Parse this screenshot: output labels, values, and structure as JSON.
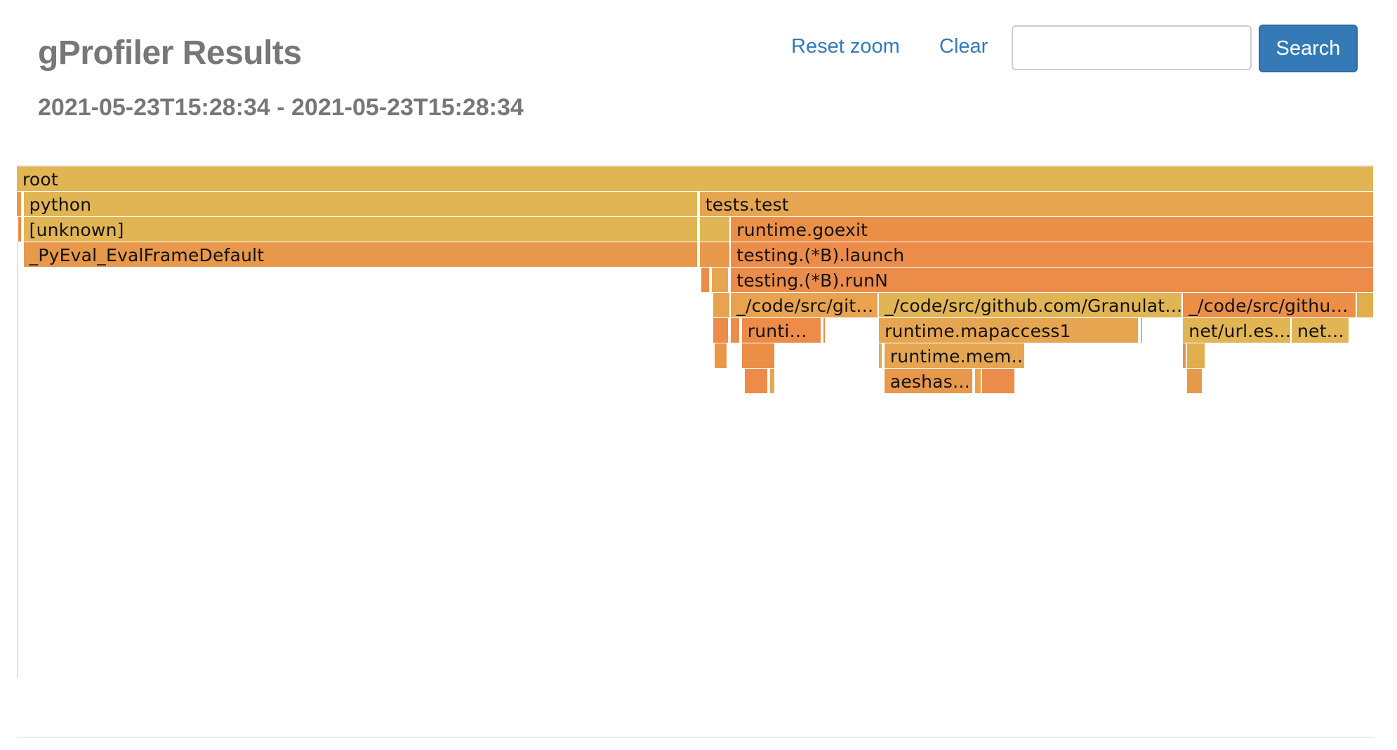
{
  "header": {
    "title": "gProfiler Results",
    "subtitle": "2021-05-23T15:28:34 - 2021-05-23T15:28:34",
    "reset_zoom_label": "Reset zoom",
    "clear_label": "Clear",
    "search_value": "",
    "search_label": "Search"
  },
  "colors": {
    "link": "#337ab7",
    "button": "#337ab7",
    "title": "#777777",
    "frame_yellow": "#e1b454",
    "frame_orange": "#ec8c4a"
  },
  "flamegraph": {
    "frames": [
      {
        "label": "root",
        "depth": 0,
        "start": 0,
        "width": 1
      },
      {
        "label": "",
        "depth": 1,
        "start": 0,
        "width": 0.004
      },
      {
        "label": "python",
        "depth": 1,
        "start": 0.005,
        "width": 0.497
      },
      {
        "label": "tests.test",
        "depth": 1,
        "start": 0.503,
        "width": 0.497
      },
      {
        "label": "",
        "depth": 2,
        "start": 0.001,
        "width": 0.003
      },
      {
        "label": "[unknown]",
        "depth": 2,
        "start": 0.005,
        "width": 0.497
      },
      {
        "label": "",
        "depth": 2,
        "start": 0.503,
        "width": 0.023
      },
      {
        "label": "runtime.goexit",
        "depth": 2,
        "start": 0.526,
        "width": 0.474
      },
      {
        "label": "_PyEval_EvalFrameDefault",
        "depth": 3,
        "start": 0.005,
        "width": 0.497
      },
      {
        "label": "",
        "depth": 3,
        "start": 0.503,
        "width": 0.023
      },
      {
        "label": "testing.(*B).launch",
        "depth": 3,
        "start": 0.526,
        "width": 0.474
      },
      {
        "label": "",
        "depth": 4,
        "start": 0.504,
        "width": 0.007
      },
      {
        "label": "",
        "depth": 4,
        "start": 0.512,
        "width": 0.013
      },
      {
        "label": "testing.(*B).runN",
        "depth": 4,
        "start": 0.526,
        "width": 0.474
      },
      {
        "label": "",
        "depth": 5,
        "start": 0.513,
        "width": 0.013
      },
      {
        "label": "_/code/src/git…",
        "depth": 5,
        "start": 0.526,
        "width": 0.109
      },
      {
        "label": "_/code/src/github.com/Granulat…",
        "depth": 5,
        "start": 0.635,
        "width": 0.224
      },
      {
        "label": "_/code/src/githu…",
        "depth": 5,
        "start": 0.859,
        "width": 0.128
      },
      {
        "label": "",
        "depth": 5,
        "start": 0.987,
        "width": 0.013
      },
      {
        "label": "",
        "depth": 6,
        "start": 0.513,
        "width": 0.012
      },
      {
        "label": "",
        "depth": 6,
        "start": 0.526,
        "width": 0.007
      },
      {
        "label": "runti…",
        "depth": 6,
        "start": 0.534,
        "width": 0.059
      },
      {
        "label": "",
        "depth": 6,
        "start": 0.594,
        "width": 0.002
      },
      {
        "label": "runtime.mapaccess1",
        "depth": 6,
        "start": 0.635,
        "width": 0.192
      },
      {
        "label": "",
        "depth": 6,
        "start": 0.828,
        "width": 0.002
      },
      {
        "label": "net/url.es…",
        "depth": 6,
        "start": 0.859,
        "width": 0.08
      },
      {
        "label": "net…",
        "depth": 6,
        "start": 0.939,
        "width": 0.043
      },
      {
        "label": "",
        "depth": 7,
        "start": 0.514,
        "width": 0.01
      },
      {
        "label": "",
        "depth": 7,
        "start": 0.534,
        "width": 0.025
      },
      {
        "label": "",
        "depth": 7,
        "start": 0.635,
        "width": 0.003
      },
      {
        "label": "runtime.mem…",
        "depth": 7,
        "start": 0.639,
        "width": 0.104
      },
      {
        "label": "",
        "depth": 7,
        "start": 0.859,
        "width": 0.003
      },
      {
        "label": "",
        "depth": 7,
        "start": 0.862,
        "width": 0.014
      },
      {
        "label": "",
        "depth": 8,
        "start": 0.536,
        "width": 0.018
      },
      {
        "label": "",
        "depth": 8,
        "start": 0.555,
        "width": 0.004
      },
      {
        "label": "aeshas…",
        "depth": 8,
        "start": 0.639,
        "width": 0.066
      },
      {
        "label": "",
        "depth": 8,
        "start": 0.706,
        "width": 0.005
      },
      {
        "label": "",
        "depth": 8,
        "start": 0.711,
        "width": 0.025
      },
      {
        "label": "",
        "depth": 8,
        "start": 0.862,
        "width": 0.012
      }
    ]
  }
}
